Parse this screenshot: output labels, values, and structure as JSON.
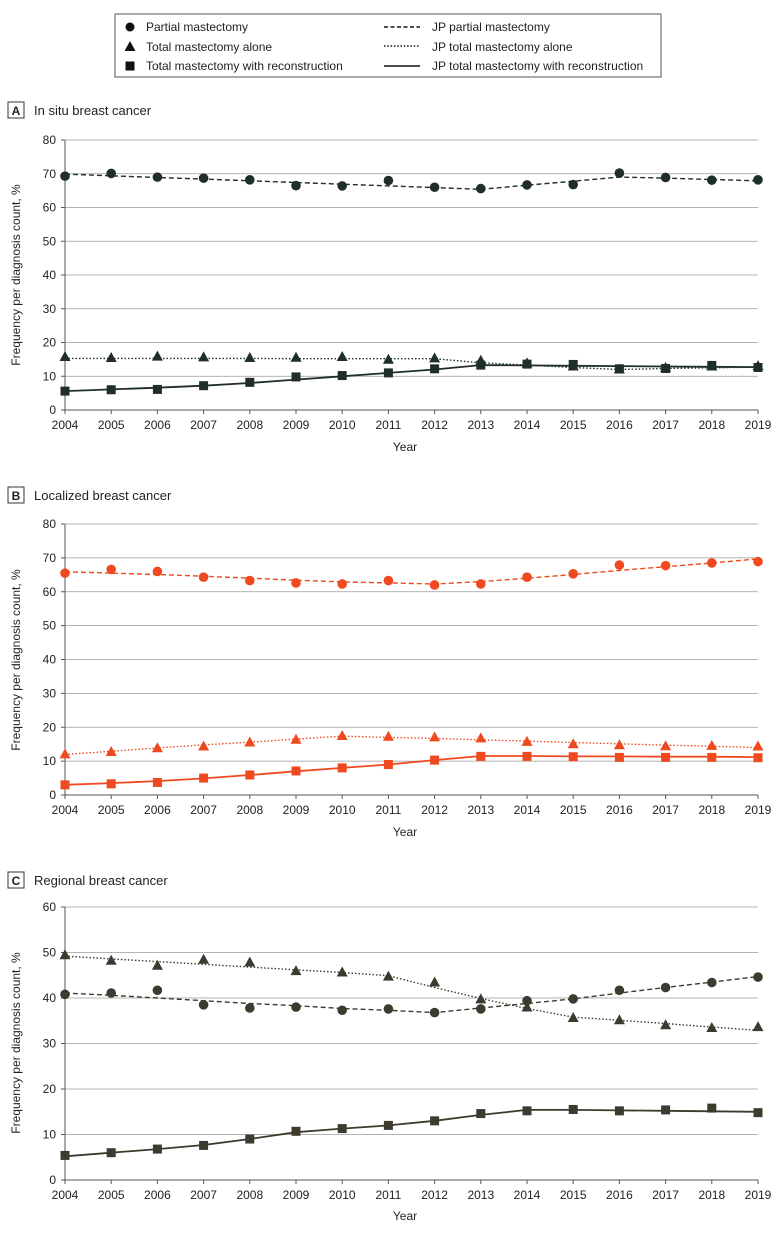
{
  "legend": {
    "markers": [
      {
        "label": "Partial mastectomy",
        "icon": "circle-marker-icon"
      },
      {
        "label": "Total mastectomy alone",
        "icon": "triangle-marker-icon"
      },
      {
        "label": "Total mastectomy with reconstruction",
        "icon": "square-marker-icon"
      }
    ],
    "lines": [
      {
        "label": "JP partial mastectomy",
        "icon": "dashed-line-icon"
      },
      {
        "label": "JP total mastectomy alone",
        "icon": "dotted-line-icon"
      },
      {
        "label": "JP total mastectomy with reconstruction",
        "icon": "solid-line-icon"
      }
    ]
  },
  "chart_data": [
    {
      "panel": "A",
      "type": "line",
      "title": "In situ breast cancer",
      "xlabel": "Year",
      "ylabel": "Frequency per diagnosis count, %",
      "color": "#1f2e2a",
      "x": [
        2004,
        2005,
        2006,
        2007,
        2008,
        2009,
        2010,
        2011,
        2012,
        2013,
        2014,
        2015,
        2016,
        2017,
        2018,
        2019
      ],
      "ylim": [
        0,
        80
      ],
      "yticks": [
        0,
        10,
        20,
        30,
        40,
        50,
        60,
        70,
        80
      ],
      "series": [
        {
          "name": "Partial mastectomy",
          "marker": "circle",
          "points": [
            69.3,
            70.1,
            69.0,
            68.7,
            68.2,
            66.5,
            66.4,
            68.0,
            66.0,
            65.6,
            66.7,
            66.8,
            70.2,
            68.9,
            68.1,
            68.2
          ],
          "jp": [
            69.9,
            69.4,
            68.9,
            68.4,
            67.9,
            67.4,
            66.9,
            66.4,
            65.9,
            65.4,
            66.6,
            67.8,
            69.0,
            68.7,
            68.3,
            67.9
          ]
        },
        {
          "name": "Total mastectomy alone",
          "marker": "triangle",
          "points": [
            15.7,
            15.4,
            15.8,
            15.6,
            15.4,
            15.5,
            15.7,
            14.9,
            15.3,
            14.6,
            13.8,
            12.9,
            12.0,
            12.5,
            12.9,
            13.0
          ],
          "jp": [
            15.3,
            15.3,
            15.3,
            15.3,
            15.3,
            15.2,
            15.2,
            15.2,
            15.2,
            14.0,
            13.3,
            12.6,
            12.0,
            12.3,
            12.5,
            12.7
          ]
        },
        {
          "name": "Total mastectomy with reconstruction",
          "marker": "square",
          "points": [
            5.6,
            6.0,
            6.1,
            7.2,
            8.2,
            9.8,
            10.2,
            11.0,
            12.2,
            13.3,
            13.6,
            13.5,
            12.2,
            12.3,
            13.2,
            12.6
          ],
          "jp": [
            5.6,
            6.1,
            6.6,
            7.2,
            8.0,
            9.0,
            10.0,
            11.0,
            12.0,
            13.3,
            13.2,
            13.1,
            13.0,
            12.9,
            12.8,
            12.7
          ]
        }
      ]
    },
    {
      "panel": "B",
      "type": "line",
      "title": "Localized breast cancer",
      "xlabel": "Year",
      "ylabel": "Frequency per diagnosis count, %",
      "color": "#ef4a1f",
      "x": [
        2004,
        2005,
        2006,
        2007,
        2008,
        2009,
        2010,
        2011,
        2012,
        2013,
        2014,
        2015,
        2016,
        2017,
        2018,
        2019
      ],
      "ylim": [
        0,
        80
      ],
      "yticks": [
        0,
        10,
        20,
        30,
        40,
        50,
        60,
        70,
        80
      ],
      "series": [
        {
          "name": "Partial mastectomy",
          "marker": "circle",
          "points": [
            65.5,
            66.6,
            66.0,
            64.3,
            63.3,
            62.6,
            62.3,
            63.3,
            62.0,
            62.3,
            64.3,
            65.3,
            67.9,
            67.7,
            68.5,
            68.9
          ],
          "jp": [
            65.9,
            65.5,
            65.1,
            64.6,
            64.0,
            63.4,
            62.9,
            62.6,
            62.3,
            63.0,
            64.0,
            65.1,
            66.3,
            67.4,
            68.5,
            69.7
          ]
        },
        {
          "name": "Total mastectomy alone",
          "marker": "triangle",
          "points": [
            12.0,
            12.7,
            13.8,
            14.3,
            15.5,
            16.3,
            17.4,
            17.2,
            17.0,
            16.7,
            15.7,
            15.0,
            14.7,
            14.4,
            14.5,
            14.3
          ],
          "jp": [
            12.0,
            12.9,
            13.9,
            14.8,
            15.6,
            16.5,
            17.4,
            17.0,
            16.7,
            16.3,
            15.9,
            15.5,
            15.1,
            14.7,
            14.4,
            14.0
          ]
        },
        {
          "name": "Total mastectomy with reconstruction",
          "marker": "square",
          "points": [
            3.0,
            3.3,
            3.7,
            5.0,
            5.9,
            7.1,
            8.0,
            9.0,
            10.3,
            11.4,
            11.4,
            11.3,
            11.1,
            11.1,
            11.1,
            11.0
          ],
          "jp": [
            3.0,
            3.5,
            4.1,
            4.9,
            5.9,
            7.0,
            8.0,
            9.0,
            10.3,
            11.5,
            11.5,
            11.4,
            11.4,
            11.3,
            11.3,
            11.2
          ]
        }
      ]
    },
    {
      "panel": "C",
      "type": "line",
      "title": "Regional breast cancer",
      "xlabel": "Year",
      "ylabel": "Frequency per diagnosis count, %",
      "color": "#3d3b2f",
      "x": [
        2004,
        2005,
        2006,
        2007,
        2008,
        2009,
        2010,
        2011,
        2012,
        2013,
        2014,
        2015,
        2016,
        2017,
        2018,
        2019
      ],
      "ylim": [
        0,
        60
      ],
      "yticks": [
        0,
        10,
        20,
        30,
        40,
        50,
        60
      ],
      "series": [
        {
          "name": "Partial mastectomy",
          "marker": "circle",
          "points": [
            40.8,
            41.1,
            41.7,
            38.5,
            37.8,
            38.0,
            37.3,
            37.6,
            36.8,
            37.6,
            39.4,
            39.8,
            41.7,
            42.3,
            43.4,
            44.6
          ],
          "jp": [
            41.1,
            40.6,
            40.0,
            39.4,
            38.8,
            38.3,
            37.7,
            37.3,
            36.8,
            37.8,
            38.8,
            39.8,
            41.1,
            42.3,
            43.5,
            44.7
          ]
        },
        {
          "name": "Total mastectomy alone",
          "marker": "triangle",
          "points": [
            49.4,
            48.2,
            47.1,
            48.4,
            47.8,
            45.9,
            45.6,
            44.7,
            43.4,
            39.7,
            37.9,
            35.6,
            35.1,
            34.0,
            33.4,
            33.6
          ],
          "jp": [
            49.2,
            48.6,
            48.0,
            47.4,
            46.8,
            46.2,
            45.6,
            44.9,
            42.3,
            39.9,
            37.7,
            35.8,
            35.1,
            34.4,
            33.6,
            32.9
          ]
        },
        {
          "name": "Total mastectomy with reconstruction",
          "marker": "square",
          "points": [
            5.4,
            6.0,
            6.8,
            7.6,
            9.0,
            10.7,
            11.3,
            12.0,
            13.0,
            14.6,
            15.2,
            15.5,
            15.2,
            15.4,
            15.8,
            14.8
          ],
          "jp": [
            5.2,
            6.0,
            6.8,
            7.7,
            9.0,
            10.5,
            11.3,
            12.0,
            13.0,
            14.3,
            15.4,
            15.4,
            15.3,
            15.2,
            15.1,
            15.0
          ]
        }
      ]
    }
  ]
}
